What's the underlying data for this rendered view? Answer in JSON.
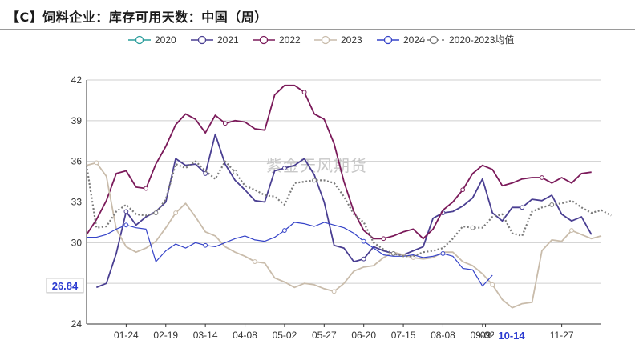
{
  "title": "【C】饲料企业：库存可用天数：中国（周）",
  "watermark": "紫金天风期货",
  "chart_data": {
    "type": "line",
    "ylim": [
      24,
      42
    ],
    "yticks": [
      24,
      27,
      30,
      33,
      36,
      39,
      42
    ],
    "xlim": [
      0,
      52
    ],
    "xtick_labels": [
      {
        "x": 4,
        "label": "01-24"
      },
      {
        "x": 8,
        "label": "02-19"
      },
      {
        "x": 12,
        "label": "03-14"
      },
      {
        "x": 16,
        "label": "04-08"
      },
      {
        "x": 20,
        "label": "05-02"
      },
      {
        "x": 24,
        "label": "05-27"
      },
      {
        "x": 28,
        "label": "06-20"
      },
      {
        "x": 32,
        "label": "07-15"
      },
      {
        "x": 36,
        "label": "08-08"
      },
      {
        "x": 40,
        "label": "09-02"
      },
      {
        "x": 40.3,
        "label": "09"
      },
      {
        "x": 48,
        "label": "11-27"
      }
    ],
    "callouts": {
      "y_value": "26.84",
      "x_label": "10-14"
    },
    "legend_position": "top",
    "series": [
      {
        "name": "2020",
        "color": "#2a9d9c",
        "values": []
      },
      {
        "name": "2021",
        "color": "#4a3f92",
        "values": [
          26.7,
          27.0,
          29.2,
          32.3,
          31.3,
          31.9,
          32.3,
          33.0,
          36.2,
          35.7,
          35.8,
          35.1,
          38.0,
          35.8,
          34.6,
          33.9,
          33.1,
          33.0,
          35.3,
          35.5,
          35.7,
          36.2,
          35.0,
          33.0,
          29.8,
          29.6,
          28.6,
          28.8,
          29.7,
          29.4,
          29.2,
          29.1,
          29.4,
          29.7,
          31.8,
          32.2,
          32.3,
          32.7,
          33.3,
          34.7,
          32.2,
          31.6,
          32.6,
          32.6,
          33.2,
          33.1,
          33.5,
          32.1,
          31.6,
          31.9,
          30.6
        ],
        "x0": 1
      },
      {
        "name": "2022",
        "color": "#7b1a5a",
        "values": [
          30.6,
          31.7,
          33.1,
          35.1,
          35.3,
          34.1,
          34.0,
          35.8,
          37.1,
          38.7,
          39.5,
          39.1,
          38.1,
          39.4,
          38.8,
          39.0,
          38.9,
          38.4,
          38.3,
          40.9,
          41.6,
          41.6,
          41.1,
          39.5,
          39.1,
          37.3,
          34.5,
          32.3,
          30.9,
          30.3,
          30.3,
          30.5,
          30.8,
          31.0,
          30.3,
          31.0,
          32.4,
          33.0,
          33.9,
          35.1,
          35.7,
          35.4,
          34.2,
          34.4,
          34.7,
          34.8,
          34.8,
          34.4,
          34.8,
          34.4,
          35.1,
          35.2
        ],
        "x0": 0
      },
      {
        "name": "2023",
        "color": "#c9bcab",
        "values": [
          35.7,
          35.9,
          34.9,
          31.0,
          29.7,
          29.3,
          29.6,
          30.1,
          31.1,
          32.2,
          32.9,
          31.9,
          30.8,
          30.5,
          29.7,
          29.3,
          29.0,
          28.6,
          28.5,
          27.4,
          27.1,
          26.7,
          27.0,
          26.9,
          26.6,
          26.4,
          27.0,
          27.9,
          28.2,
          28.3,
          28.9,
          29.3,
          29.1,
          28.9,
          28.8,
          28.9,
          29.3,
          29.3,
          28.6,
          28.3,
          27.7,
          26.9,
          25.8,
          25.2,
          25.5,
          25.6,
          29.4,
          30.2,
          30.1,
          30.9,
          30.6,
          30.3,
          30.5
        ],
        "x0": 0
      },
      {
        "name": "2024",
        "color": "#3543c8",
        "values": [
          30.4,
          30.4,
          30.6,
          31.0,
          31.3,
          31.1,
          31.0,
          28.6,
          29.4,
          29.9,
          29.6,
          30.0,
          29.8,
          29.7,
          30.0,
          30.3,
          30.5,
          30.2,
          30.1,
          30.4,
          30.9,
          31.5,
          31.4,
          31.2,
          31.5,
          31.3,
          31.1,
          30.7,
          30.1,
          29.6,
          29.1,
          29.0,
          29.0,
          29.1,
          28.9,
          29.0,
          29.2,
          29.0,
          28.1,
          28.0,
          26.8,
          27.6
        ],
        "x0": 0
      },
      {
        "name": "2020-2023均值",
        "color": "#7a7a7a",
        "dashed": true,
        "values": [
          35.7,
          31.1,
          31.2,
          32.3,
          32.8,
          32.1,
          32.0,
          32.2,
          33.2,
          35.8,
          35.5,
          36.0,
          35.3,
          34.7,
          36.0,
          35.2,
          34.2,
          33.9,
          33.5,
          33.4,
          32.8,
          34.4,
          34.5,
          34.6,
          34.6,
          34.4,
          33.4,
          32.1,
          31.5,
          30.0,
          29.5,
          29.2,
          29.0,
          29.0,
          29.3,
          29.4,
          29.6,
          30.3,
          31.2,
          31.1,
          31.1,
          31.9,
          32.1,
          30.7,
          30.5,
          32.3,
          32.6,
          32.8,
          32.9,
          33.1,
          32.6,
          32.2,
          32.4,
          32.0
        ],
        "x0": 0
      }
    ]
  }
}
